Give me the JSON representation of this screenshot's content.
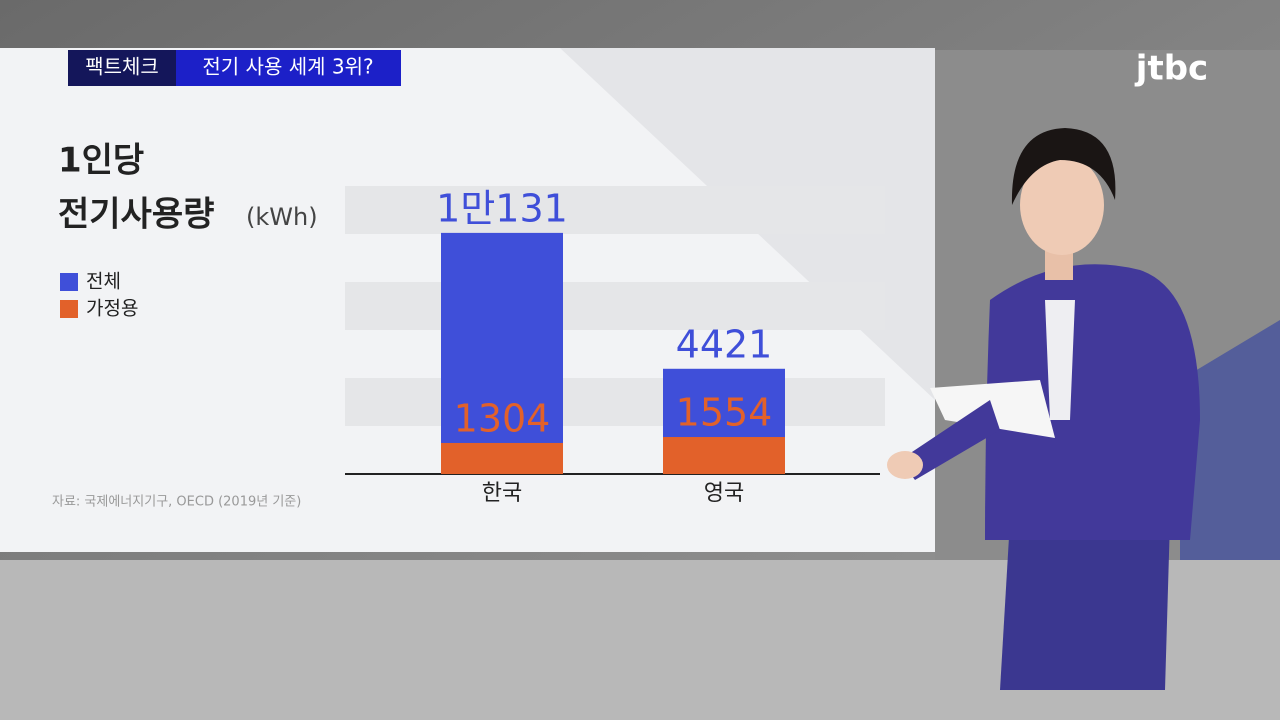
{
  "badge": "팩트체크",
  "headline": "전기 사용 세계 3위?",
  "logo": "jtbc",
  "chart_data": {
    "type": "bar",
    "title": [
      "1인당",
      "전기사용량"
    ],
    "unit": "(kWh)",
    "categories": [
      "한국",
      "영국"
    ],
    "series": [
      {
        "name": "전체",
        "color": "#3f4fd9",
        "values": [
          10131,
          4421
        ],
        "value_labels": [
          "1만131",
          "4421"
        ]
      },
      {
        "name": "가정용",
        "color": "#e2612a",
        "values": [
          1304,
          1554
        ]
      }
    ],
    "source": "자료: 국제에너지기구, OECD (2019년 기준)"
  }
}
